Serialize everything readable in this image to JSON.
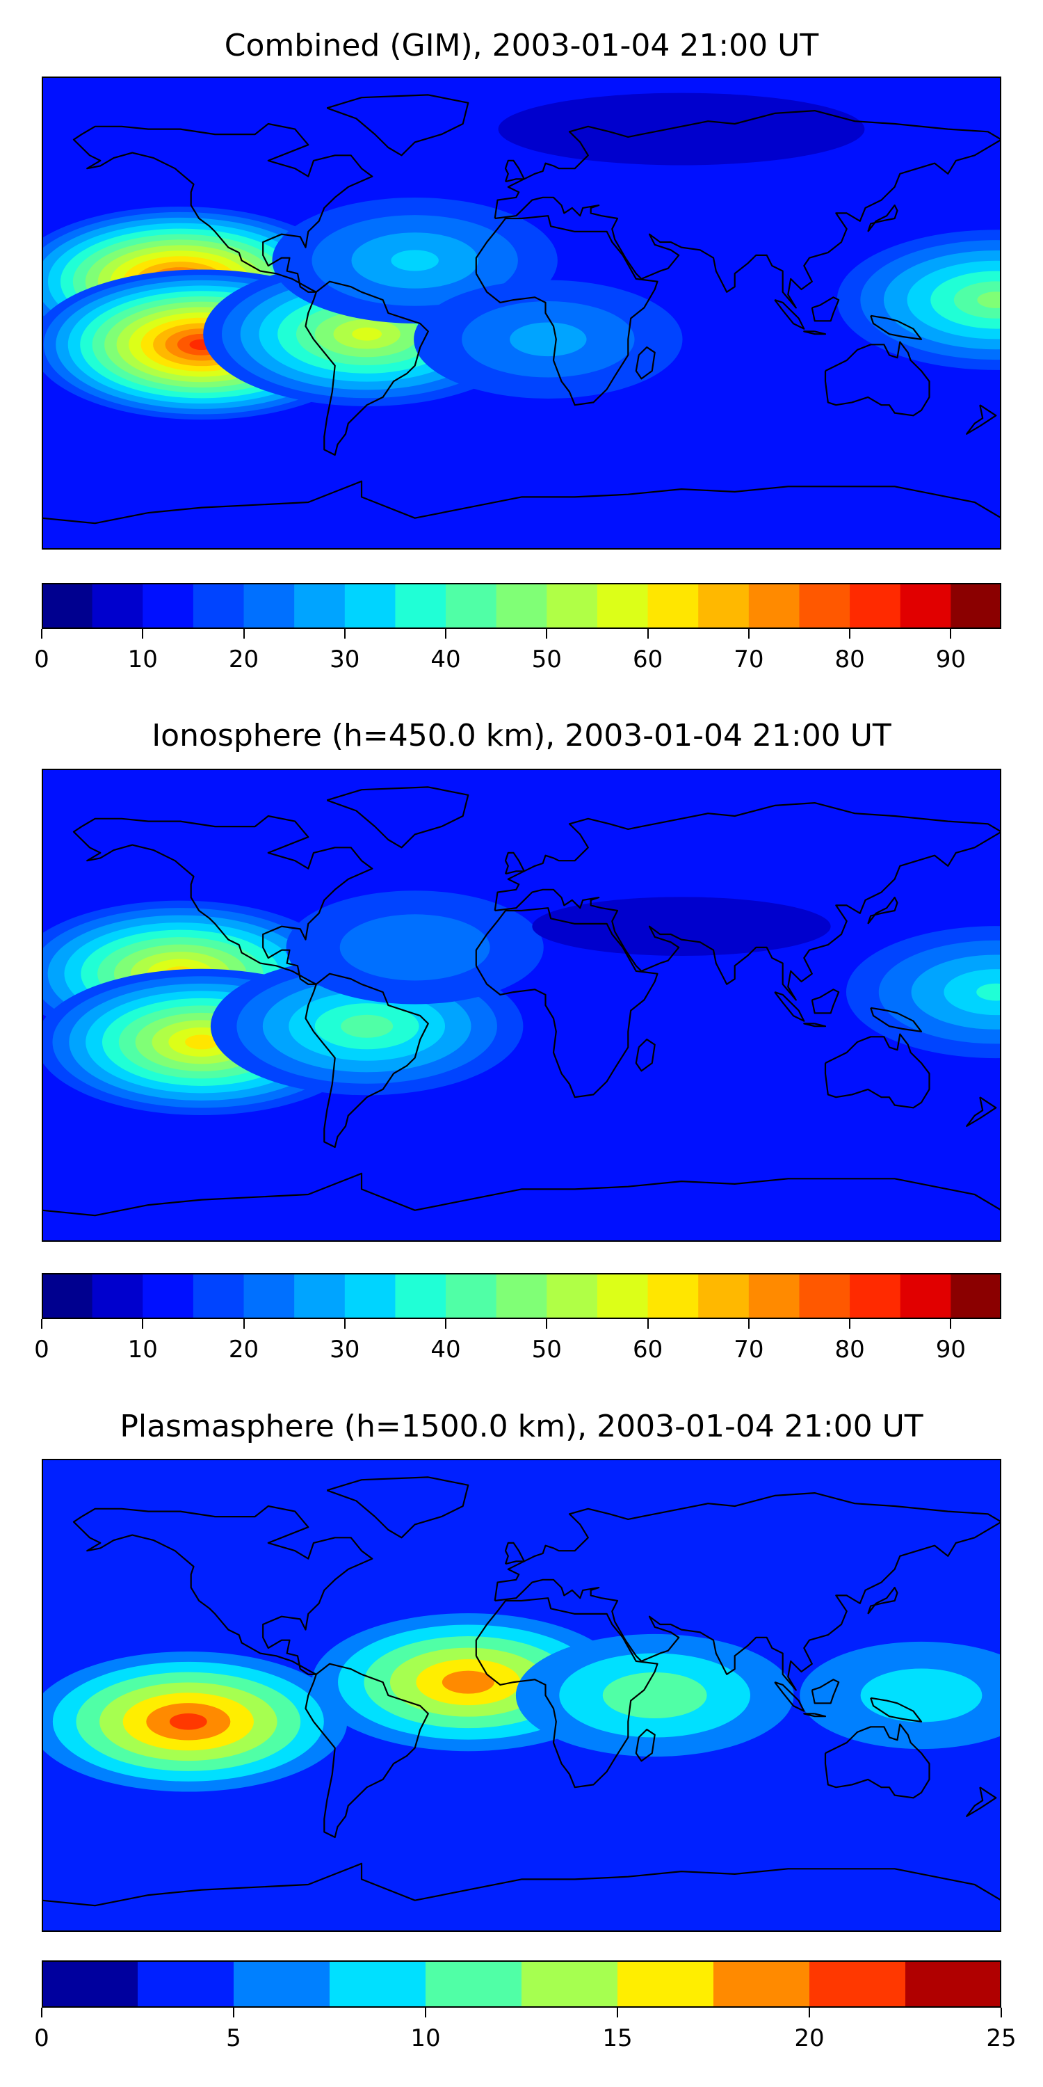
{
  "chart_data": [
    {
      "type": "heatmap",
      "title": "Combined (GIM), 2003-01-04 21:00 UT",
      "xlabel": "",
      "ylabel": "",
      "colorbar": {
        "range": [
          0,
          95
        ],
        "step": 5,
        "ticks": [
          "0",
          "10",
          "20",
          "30",
          "40",
          "50",
          "60",
          "70",
          "80",
          "90"
        ],
        "tick_values": [
          0,
          10,
          20,
          30,
          40,
          50,
          60,
          70,
          80,
          90
        ],
        "colors": [
          "#00008f",
          "#0000cd",
          "#0010ff",
          "#0044ff",
          "#0070ff",
          "#00a4ff",
          "#00d4ff",
          "#20ffd6",
          "#50ffa6",
          "#80ff76",
          "#b0ff46",
          "#dcff18",
          "#ffe600",
          "#ffb800",
          "#ff8a00",
          "#ff5800",
          "#ff2a00",
          "#e10000",
          "#8b0000"
        ]
      },
      "background_level": 12,
      "features": [
        {
          "name": "central Pacific north crest",
          "lon": -128,
          "lat": 12,
          "peak": 82
        },
        {
          "name": "central Pacific south crest",
          "lon": -120,
          "lat": -12,
          "peak": 84
        },
        {
          "name": "South America",
          "lon": -58,
          "lat": -8,
          "peak": 58
        },
        {
          "name": "western Pacific",
          "lon": 178,
          "lat": 5,
          "peak": 48
        },
        {
          "name": "North Atlantic band",
          "lon": -40,
          "lat": 20,
          "peak": 32
        },
        {
          "name": "Africa/Atlantic tail",
          "lon": 10,
          "lat": -10,
          "peak": 28
        },
        {
          "name": "polar cap",
          "lon": 60,
          "lat": 70,
          "peak": 4
        }
      ]
    },
    {
      "type": "heatmap",
      "title": "Ionosphere  (h=450.0 km), 2003-01-04 21:00 UT",
      "xlabel": "",
      "ylabel": "",
      "colorbar": {
        "range": [
          0,
          95
        ],
        "step": 5,
        "ticks": [
          "0",
          "10",
          "20",
          "30",
          "40",
          "50",
          "60",
          "70",
          "80",
          "90"
        ],
        "tick_values": [
          0,
          10,
          20,
          30,
          40,
          50,
          60,
          70,
          80,
          90
        ],
        "colors": [
          "#00008f",
          "#0000cd",
          "#0010ff",
          "#0044ff",
          "#0070ff",
          "#00a4ff",
          "#00d4ff",
          "#20ffd6",
          "#50ffa6",
          "#80ff76",
          "#b0ff46",
          "#dcff18",
          "#ffe600",
          "#ffb800",
          "#ff8a00",
          "#ff5800",
          "#ff2a00",
          "#e10000",
          "#8b0000"
        ]
      },
      "background_level": 10,
      "features": [
        {
          "name": "central Pacific north crest",
          "lon": -128,
          "lat": 12,
          "peak": 62
        },
        {
          "name": "central Pacific south crest",
          "lon": -120,
          "lat": -14,
          "peak": 62
        },
        {
          "name": "South America",
          "lon": -58,
          "lat": -8,
          "peak": 42
        },
        {
          "name": "western Pacific",
          "lon": 178,
          "lat": 5,
          "peak": 35
        },
        {
          "name": "North Atlantic band",
          "lon": -40,
          "lat": 22,
          "peak": 24
        },
        {
          "name": "Eurasia/Africa low",
          "lon": 60,
          "lat": 30,
          "peak": 4
        }
      ]
    },
    {
      "type": "heatmap",
      "title": "Plasmasphere (h=1500.0 km), 2003-01-04 21:00 UT",
      "xlabel": "",
      "ylabel": "",
      "colorbar": {
        "range": [
          0,
          25
        ],
        "step": 2.5,
        "ticks": [
          "0",
          "5",
          "10",
          "15",
          "20",
          "25"
        ],
        "tick_values": [
          0,
          5,
          10,
          15,
          20,
          25
        ],
        "colors": [
          "#00009e",
          "#0020ff",
          "#0080ff",
          "#00e0ff",
          "#50ffa6",
          "#a6ff50",
          "#ffee00",
          "#ff8a00",
          "#ff3800",
          "#b00000"
        ]
      },
      "background_level": 3,
      "features": [
        {
          "name": "central Pacific",
          "lon": -125,
          "lat": -10,
          "peak": 21
        },
        {
          "name": "equatorial Atlantic",
          "lon": -20,
          "lat": 5,
          "peak": 19
        },
        {
          "name": "Africa/Indian Ocean",
          "lon": 50,
          "lat": 0,
          "peak": 12
        },
        {
          "name": "western Pacific",
          "lon": 150,
          "lat": 0,
          "peak": 9
        },
        {
          "name": "northern high latitudes",
          "lon": 0,
          "lat": 65,
          "peak": 1
        },
        {
          "name": "southern high latitudes",
          "lon": 0,
          "lat": -65,
          "peak": 1
        }
      ]
    }
  ]
}
